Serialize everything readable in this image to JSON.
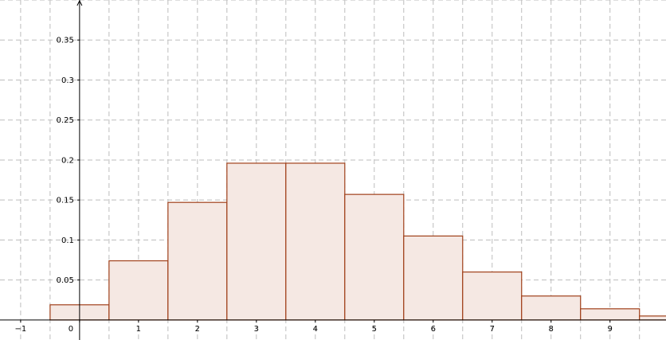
{
  "chart_data": {
    "type": "bar",
    "title": "",
    "xlabel": "",
    "ylabel": "",
    "grid": true,
    "xlim": [
      -1.35,
      9.95
    ],
    "ylim": [
      -0.025,
      0.4
    ],
    "categories": [
      0,
      1,
      2,
      3,
      4,
      5,
      6,
      7,
      8,
      9,
      10
    ],
    "values": [
      0.019,
      0.074,
      0.147,
      0.196,
      0.196,
      0.157,
      0.105,
      0.06,
      0.03,
      0.014,
      0.005
    ],
    "bar_width": 1,
    "x_ticks": [
      {
        "value": -1,
        "label": "−1"
      },
      {
        "value": 0,
        "label": "0"
      },
      {
        "value": 1,
        "label": "1"
      },
      {
        "value": 2,
        "label": "2"
      },
      {
        "value": 3,
        "label": "3"
      },
      {
        "value": 4,
        "label": "4"
      },
      {
        "value": 5,
        "label": "5"
      },
      {
        "value": 6,
        "label": "6"
      },
      {
        "value": 7,
        "label": "7"
      },
      {
        "value": 8,
        "label": "8"
      },
      {
        "value": 9,
        "label": "9"
      }
    ],
    "y_ticks": [
      {
        "value": 0.05,
        "label": "0.05"
      },
      {
        "value": 0.1,
        "label": "0.1"
      },
      {
        "value": 0.15,
        "label": "0.15"
      },
      {
        "value": 0.2,
        "label": "0.2"
      },
      {
        "value": 0.25,
        "label": "0.25"
      },
      {
        "value": 0.3,
        "label": "0.3"
      },
      {
        "value": 0.35,
        "label": "0.35"
      }
    ],
    "colors": {
      "bar_fill": "#f5e8e3",
      "bar_stroke": "#a0401a",
      "grid": "#bdbdbd",
      "axis": "#000000"
    }
  }
}
